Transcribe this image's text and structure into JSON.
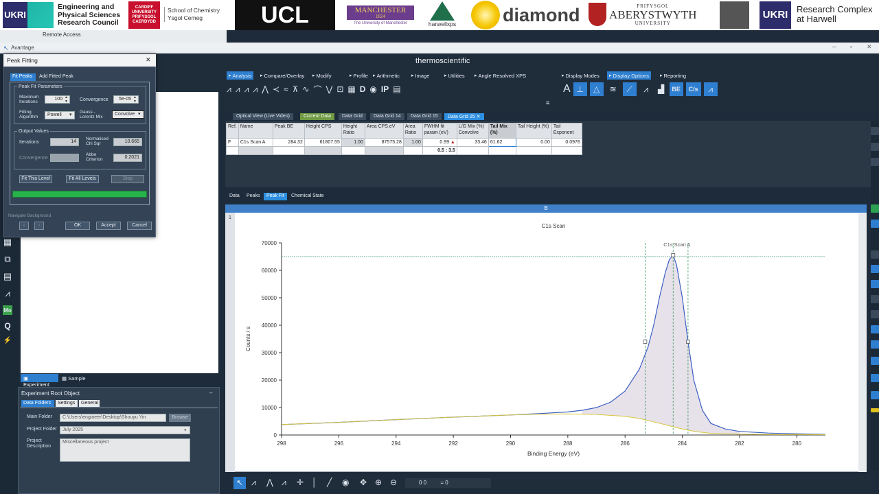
{
  "banner": {
    "epsrc_lines": [
      "Engineering and",
      "Physical Sciences",
      "Research Council"
    ],
    "cardiff_lines": [
      "CARDIFF",
      "UNIVERSITY",
      "PRIFYSGOL",
      "CAERDYDD"
    ],
    "chemistry_lines": [
      "School of Chemistry",
      "Ysgol Cemeg"
    ],
    "ucl": "UCL",
    "manchester": "MANCHESTER",
    "manchester_year": "1824",
    "manchester_sub": "The University of Manchester",
    "harwellxps": "harwellxps",
    "diamond": "diamond",
    "aber_top": "PRIFYSGOL",
    "aber_main": "ABERYSTWYTH",
    "aber_sub": "UNIVERSITY",
    "rch_lines": [
      "Research Complex",
      "at Harwell"
    ],
    "ukri": "UKRI"
  },
  "remote": "Remote Access",
  "app": {
    "title": "Avantage",
    "brand": "thermoscientific"
  },
  "ribbon": {
    "tabs": [
      "Analysis",
      "Compare/Overlay",
      "Modify",
      "Profile",
      "Arithmetic",
      "Image",
      "Utilities",
      "Angle Resolved XPS",
      "Display Modes",
      "Display Options",
      "Reporting"
    ],
    "be_button": "BE",
    "cs_button": "C/s"
  },
  "data_tabs": [
    "Optical View (Live Video)",
    "Current Data",
    "Data Grid",
    "Data Grid 14",
    "Data Grid 15",
    "Data Grid 25"
  ],
  "grid": {
    "headers": [
      "Ref.",
      "Name",
      "Peak BE",
      "Height CPS",
      "Height Ratio",
      "Area CPS.eV",
      "Area Ratio",
      "FWHM fit param (eV)",
      "L/G Mix (%) Convolve",
      "Tail Mix (%)",
      "Tail Height (%)",
      "Tail Exponent"
    ],
    "row": [
      "F",
      "C1s Scan A",
      "284.32",
      "61807.55",
      "1.00",
      "87575.28",
      "1.00",
      "0.99",
      "33.46",
      "61.62",
      "0.00",
      "0.0976"
    ],
    "fwhm_range": "0.5 : 3.5"
  },
  "bottom_tabs": [
    "Data",
    "Peaks",
    "Peak Fit",
    "Chemical State"
  ],
  "chart_panel": {
    "header": "B",
    "row_label": "1"
  },
  "chart_data": {
    "type": "line",
    "title": "C1s Scan",
    "xlabel": "Binding Energy (eV)",
    "ylabel": "Counts / s",
    "xlim": [
      298,
      279
    ],
    "ylim": [
      0,
      70000
    ],
    "x_ticks": [
      298,
      296,
      294,
      292,
      290,
      288,
      286,
      284,
      282,
      280
    ],
    "y_ticks": [
      0,
      10000,
      20000,
      30000,
      40000,
      50000,
      60000,
      70000
    ],
    "peak_label": "C1s Scan A",
    "series": [
      {
        "name": "C1s Scan",
        "color": "#3b5fc4",
        "x": [
          298,
          296,
          294,
          292,
          290,
          289,
          288,
          287.5,
          287,
          286.5,
          286,
          285.5,
          285.2,
          285,
          284.8,
          284.6,
          284.45,
          284.32,
          284.2,
          284,
          283.8,
          283.6,
          283.3,
          283,
          282.5,
          282,
          281,
          280,
          279
        ],
        "y": [
          3800,
          4600,
          5600,
          6500,
          7300,
          7800,
          8400,
          9000,
          10000,
          12000,
          16000,
          24000,
          32000,
          40000,
          50000,
          59000,
          64000,
          65500,
          62000,
          50000,
          34000,
          20000,
          9000,
          4200,
          2200,
          1300,
          700,
          400,
          250
        ]
      },
      {
        "name": "Background",
        "color": "#d8c63a",
        "x": [
          298,
          296,
          294,
          292,
          290,
          289,
          288,
          287,
          286,
          285.5,
          285,
          284.5,
          284,
          283.5,
          283,
          282,
          281,
          280,
          279
        ],
        "y": [
          3800,
          4600,
          5600,
          6500,
          7300,
          7600,
          7700,
          7500,
          6800,
          6000,
          4800,
          3500,
          2200,
          1200,
          600,
          300,
          200,
          150,
          120
        ]
      }
    ],
    "reference_line": 65000,
    "markers_x": [
      285.3,
      284.32,
      283.8
    ]
  },
  "dialog": {
    "title": "Peak Fitting",
    "close": "✕",
    "tabs": [
      "Fit Peaks",
      "Add Fitted Peak"
    ],
    "group_params": "Peak Fit Parameters",
    "max_iter_label": "Maximum Iterations",
    "max_iter": "100",
    "convergence_label": "Convergence",
    "convergence": "5e-05",
    "algorithm_label": "Fitting Algorithm",
    "algorithm": "Powell",
    "gl_label": "Gauss - Lorentz Mix",
    "gl_mix": "Convolve",
    "group_output": "Output Values",
    "iterations_label": "Iterations",
    "iterations": "14",
    "chi_label": "Normalised Chi Sqr",
    "chi": "10.665",
    "conv_out_label": "Convergence",
    "abbe_label": "Abbe Criterion",
    "abbe": "0.2021",
    "fit_this": "Fit This Level",
    "fit_all": "Fit All Levels",
    "stop": "Stop",
    "navigate": "Navigate Background",
    "ok": "OK",
    "accept": "Accept",
    "cancel": "Cancel"
  },
  "left_panel": {
    "tabs": [
      "Experiment",
      "Sample"
    ],
    "root_title": "Experiment Root Object",
    "sub_tabs": [
      "Data Folders",
      "Settings",
      "General"
    ],
    "main_folder_label": "Main Folder",
    "main_folder": "C:\\Users\\engineer\\Desktop\\Shouyu Yin",
    "browse": "Browse",
    "project_folder_label": "Project Folder",
    "project_folder": "July 2025",
    "project_desc_label": "Project Description",
    "project_desc": "Miscellaneous project"
  },
  "bottom_toolbar": {
    "readout_a": "0 0",
    "readout_b": "= 0"
  }
}
